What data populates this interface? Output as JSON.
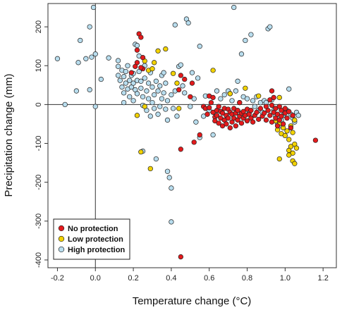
{
  "chart_data": {
    "type": "scatter",
    "title": "",
    "xlabel": "Temperature change (°C)",
    "ylabel": "Precipitation change (mm)",
    "xlim": [
      -0.25,
      1.27
    ],
    "ylim": [
      -420,
      260
    ],
    "x_ticks": [
      "-0.2",
      "0.0",
      "0.2",
      "0.4",
      "0.6",
      "0.8",
      "1.0",
      "1.2"
    ],
    "y_ticks": [
      "-400",
      "-300",
      "-200",
      "-100",
      "0",
      "100",
      "200"
    ],
    "reference_lines": {
      "x": 0,
      "y": 0
    },
    "grid": false,
    "legend_position": "bottom-left",
    "series": [
      {
        "name": "No protection",
        "color": "#e41a1c",
        "points": [
          [
            0.23,
            182
          ],
          [
            0.24,
            173
          ],
          [
            0.22,
            140
          ],
          [
            0.25,
            121
          ],
          [
            0.22,
            108
          ],
          [
            0.21,
            98
          ],
          [
            0.25,
            92
          ],
          [
            0.19,
            82
          ],
          [
            0.24,
            95
          ],
          [
            0.45,
            75
          ],
          [
            0.47,
            65
          ],
          [
            0.51,
            55
          ],
          [
            0.44,
            38
          ],
          [
            0.5,
            20
          ],
          [
            0.45,
            -115
          ],
          [
            0.45,
            -392
          ],
          [
            0.55,
            -78
          ],
          [
            0.52,
            -97
          ],
          [
            0.57,
            -5
          ],
          [
            0.58,
            -10
          ],
          [
            0.59,
            -25
          ],
          [
            0.6,
            -8
          ],
          [
            0.61,
            5
          ],
          [
            0.6,
            22
          ],
          [
            0.62,
            18
          ],
          [
            0.62,
            -20
          ],
          [
            0.63,
            -32
          ],
          [
            0.63,
            -42
          ],
          [
            0.64,
            -15
          ],
          [
            0.64,
            -28
          ],
          [
            0.65,
            -5
          ],
          [
            0.65,
            -48
          ],
          [
            0.66,
            -18
          ],
          [
            0.66,
            -35
          ],
          [
            0.67,
            -55
          ],
          [
            0.67,
            -22
          ],
          [
            0.68,
            -10
          ],
          [
            0.68,
            -40
          ],
          [
            0.69,
            -28
          ],
          [
            0.69,
            -50
          ],
          [
            0.7,
            -12
          ],
          [
            0.7,
            -35
          ],
          [
            0.71,
            -20
          ],
          [
            0.71,
            -60
          ],
          [
            0.72,
            -25
          ],
          [
            0.72,
            -45
          ],
          [
            0.73,
            -10
          ],
          [
            0.73,
            -35
          ],
          [
            0.74,
            -22
          ],
          [
            0.74,
            -55
          ],
          [
            0.75,
            -15
          ],
          [
            0.75,
            -40
          ],
          [
            0.76,
            -30
          ],
          [
            0.76,
            5
          ],
          [
            0.77,
            -22
          ],
          [
            0.77,
            -48
          ],
          [
            0.78,
            -18
          ],
          [
            0.78,
            -35
          ],
          [
            0.79,
            -28
          ],
          [
            0.8,
            -12
          ],
          [
            0.8,
            -42
          ],
          [
            0.81,
            -25
          ],
          [
            0.82,
            -35
          ],
          [
            0.82,
            -15
          ],
          [
            0.83,
            -45
          ],
          [
            0.84,
            -28
          ],
          [
            0.85,
            -20
          ],
          [
            0.86,
            -38
          ],
          [
            0.87,
            -10
          ],
          [
            0.88,
            -30
          ],
          [
            0.89,
            -22
          ],
          [
            0.9,
            -5
          ],
          [
            0.9,
            -40
          ],
          [
            0.91,
            -15
          ],
          [
            0.92,
            -28
          ],
          [
            0.92,
            12
          ],
          [
            0.93,
            -2
          ],
          [
            0.93,
            35
          ],
          [
            0.93,
            -45
          ],
          [
            0.94,
            -20
          ],
          [
            0.94,
            18
          ],
          [
            0.95,
            -35
          ],
          [
            0.95,
            -10
          ],
          [
            0.96,
            -55
          ],
          [
            0.96,
            -25
          ],
          [
            0.97,
            -5
          ],
          [
            0.97,
            -40
          ],
          [
            0.98,
            -30
          ],
          [
            0.98,
            -15
          ],
          [
            0.99,
            -50
          ],
          [
            1.0,
            -22
          ],
          [
            1.0,
            -10
          ],
          [
            1.01,
            -35
          ],
          [
            1.02,
            -18
          ],
          [
            1.03,
            -60
          ],
          [
            1.04,
            -28
          ],
          [
            1.16,
            -92
          ]
        ]
      },
      {
        "name": "Low protection",
        "color": "#f2d200",
        "points": [
          [
            0.26,
            112
          ],
          [
            0.28,
            88
          ],
          [
            0.3,
            92
          ],
          [
            0.31,
            108
          ],
          [
            0.33,
            138
          ],
          [
            0.37,
            143
          ],
          [
            0.41,
            80
          ],
          [
            0.43,
            55
          ],
          [
            0.44,
            -10
          ],
          [
            0.22,
            -28
          ],
          [
            0.24,
            -122
          ],
          [
            0.29,
            -165
          ],
          [
            0.26,
            -5
          ],
          [
            0.62,
            88
          ],
          [
            0.71,
            28
          ],
          [
            0.79,
            42
          ],
          [
            0.86,
            22
          ],
          [
            0.97,
            18
          ],
          [
            0.95,
            -42
          ],
          [
            0.96,
            -65
          ],
          [
            0.97,
            -50
          ],
          [
            0.98,
            -75
          ],
          [
            0.99,
            -60
          ],
          [
            1.0,
            -80
          ],
          [
            1.01,
            -68
          ],
          [
            1.02,
            -90
          ],
          [
            1.03,
            -55
          ],
          [
            1.04,
            -72
          ],
          [
            1.05,
            -40
          ],
          [
            1.02,
            -118
          ],
          [
            1.03,
            -108
          ],
          [
            1.04,
            -125
          ],
          [
            1.05,
            -102
          ],
          [
            1.06,
            -112
          ],
          [
            1.04,
            -145
          ],
          [
            1.02,
            -130
          ],
          [
            0.97,
            -140
          ],
          [
            1.05,
            -152
          ]
        ]
      },
      {
        "name": "High protection",
        "color": "#b8ddee",
        "points": [
          [
            -0.2,
            118
          ],
          [
            -0.16,
            0
          ],
          [
            -0.1,
            35
          ],
          [
            -0.08,
            165
          ],
          [
            -0.05,
            118
          ],
          [
            -0.03,
            38
          ],
          [
            -0.03,
            200
          ],
          [
            -0.02,
            122
          ],
          [
            -0.01,
            250
          ],
          [
            0.0,
            130
          ],
          [
            0.0,
            -5
          ],
          [
            -0.09,
            108
          ],
          [
            0.03,
            65
          ],
          [
            0.07,
            120
          ],
          [
            0.12,
            113
          ],
          [
            0.12,
            98
          ],
          [
            0.12,
            75
          ],
          [
            0.13,
            62
          ],
          [
            0.14,
            88
          ],
          [
            0.14,
            45
          ],
          [
            0.15,
            72
          ],
          [
            0.15,
            30
          ],
          [
            0.15,
            5
          ],
          [
            0.16,
            85
          ],
          [
            0.16,
            55
          ],
          [
            0.17,
            40
          ],
          [
            0.17,
            100
          ],
          [
            0.18,
            62
          ],
          [
            0.18,
            20
          ],
          [
            0.19,
            75
          ],
          [
            0.19,
            45
          ],
          [
            0.2,
            80
          ],
          [
            0.2,
            55
          ],
          [
            0.2,
            10
          ],
          [
            0.21,
            38
          ],
          [
            0.21,
            155
          ],
          [
            0.22,
            152
          ],
          [
            0.22,
            62
          ],
          [
            0.22,
            28
          ],
          [
            0.23,
            125
          ],
          [
            0.23,
            85
          ],
          [
            0.24,
            60
          ],
          [
            0.24,
            42
          ],
          [
            0.25,
            20
          ],
          [
            0.25,
            -2
          ],
          [
            0.25,
            -120
          ],
          [
            0.26,
            100
          ],
          [
            0.26,
            68
          ],
          [
            0.27,
            35
          ],
          [
            0.27,
            -15
          ],
          [
            0.28,
            55
          ],
          [
            0.28,
            15
          ],
          [
            0.29,
            82
          ],
          [
            0.29,
            -30
          ],
          [
            0.3,
            45
          ],
          [
            0.3,
            5
          ],
          [
            0.31,
            -10
          ],
          [
            0.31,
            25
          ],
          [
            0.32,
            60
          ],
          [
            0.32,
            -140
          ],
          [
            0.33,
            35
          ],
          [
            0.33,
            -25
          ],
          [
            0.34,
            -5
          ],
          [
            0.34,
            48
          ],
          [
            0.35,
            75
          ],
          [
            0.35,
            15
          ],
          [
            0.36,
            82
          ],
          [
            0.36,
            30
          ],
          [
            0.37,
            -12
          ],
          [
            0.37,
            55
          ],
          [
            0.38,
            -40
          ],
          [
            0.38,
            10
          ],
          [
            0.38,
            -172
          ],
          [
            0.39,
            -188
          ],
          [
            0.4,
            -215
          ],
          [
            0.4,
            -302
          ],
          [
            0.4,
            25
          ],
          [
            0.41,
            -10
          ],
          [
            0.42,
            35
          ],
          [
            0.42,
            205
          ],
          [
            0.43,
            -30
          ],
          [
            0.44,
            98
          ],
          [
            0.45,
            102
          ],
          [
            0.46,
            48
          ],
          [
            0.47,
            30
          ],
          [
            0.48,
            220
          ],
          [
            0.49,
            210
          ],
          [
            0.5,
            -5
          ],
          [
            0.51,
            82
          ],
          [
            0.52,
            15
          ],
          [
            0.53,
            -45
          ],
          [
            0.54,
            68
          ],
          [
            0.55,
            150
          ],
          [
            0.55,
            -85
          ],
          [
            0.57,
            -30
          ],
          [
            0.58,
            22
          ],
          [
            0.6,
            -15
          ],
          [
            0.62,
            -78
          ],
          [
            0.64,
            35
          ],
          [
            0.66,
            15
          ],
          [
            0.68,
            25
          ],
          [
            0.7,
            35
          ],
          [
            0.71,
            28
          ],
          [
            0.72,
            10
          ],
          [
            0.73,
            250
          ],
          [
            0.74,
            35
          ],
          [
            0.75,
            60
          ],
          [
            0.76,
            5
          ],
          [
            0.77,
            130
          ],
          [
            0.78,
            20
          ],
          [
            0.79,
            165
          ],
          [
            0.8,
            15
          ],
          [
            0.81,
            -22
          ],
          [
            0.82,
            180
          ],
          [
            0.83,
            10
          ],
          [
            0.84,
            -5
          ],
          [
            0.85,
            20
          ],
          [
            0.86,
            -15
          ],
          [
            0.87,
            5
          ],
          [
            0.88,
            -20
          ],
          [
            0.89,
            10
          ],
          [
            0.9,
            5
          ],
          [
            0.91,
            195
          ],
          [
            0.92,
            200
          ],
          [
            0.93,
            12
          ],
          [
            0.94,
            -15
          ],
          [
            0.95,
            -30
          ],
          [
            0.96,
            -48
          ],
          [
            0.97,
            -55
          ],
          [
            0.98,
            -40
          ],
          [
            0.99,
            -28
          ],
          [
            1.0,
            -20
          ],
          [
            1.01,
            -15
          ],
          [
            1.02,
            40
          ],
          [
            1.03,
            -25
          ],
          [
            1.04,
            -35
          ],
          [
            1.05,
            -45
          ],
          [
            1.06,
            -20
          ],
          [
            1.07,
            -28
          ]
        ]
      }
    ]
  }
}
